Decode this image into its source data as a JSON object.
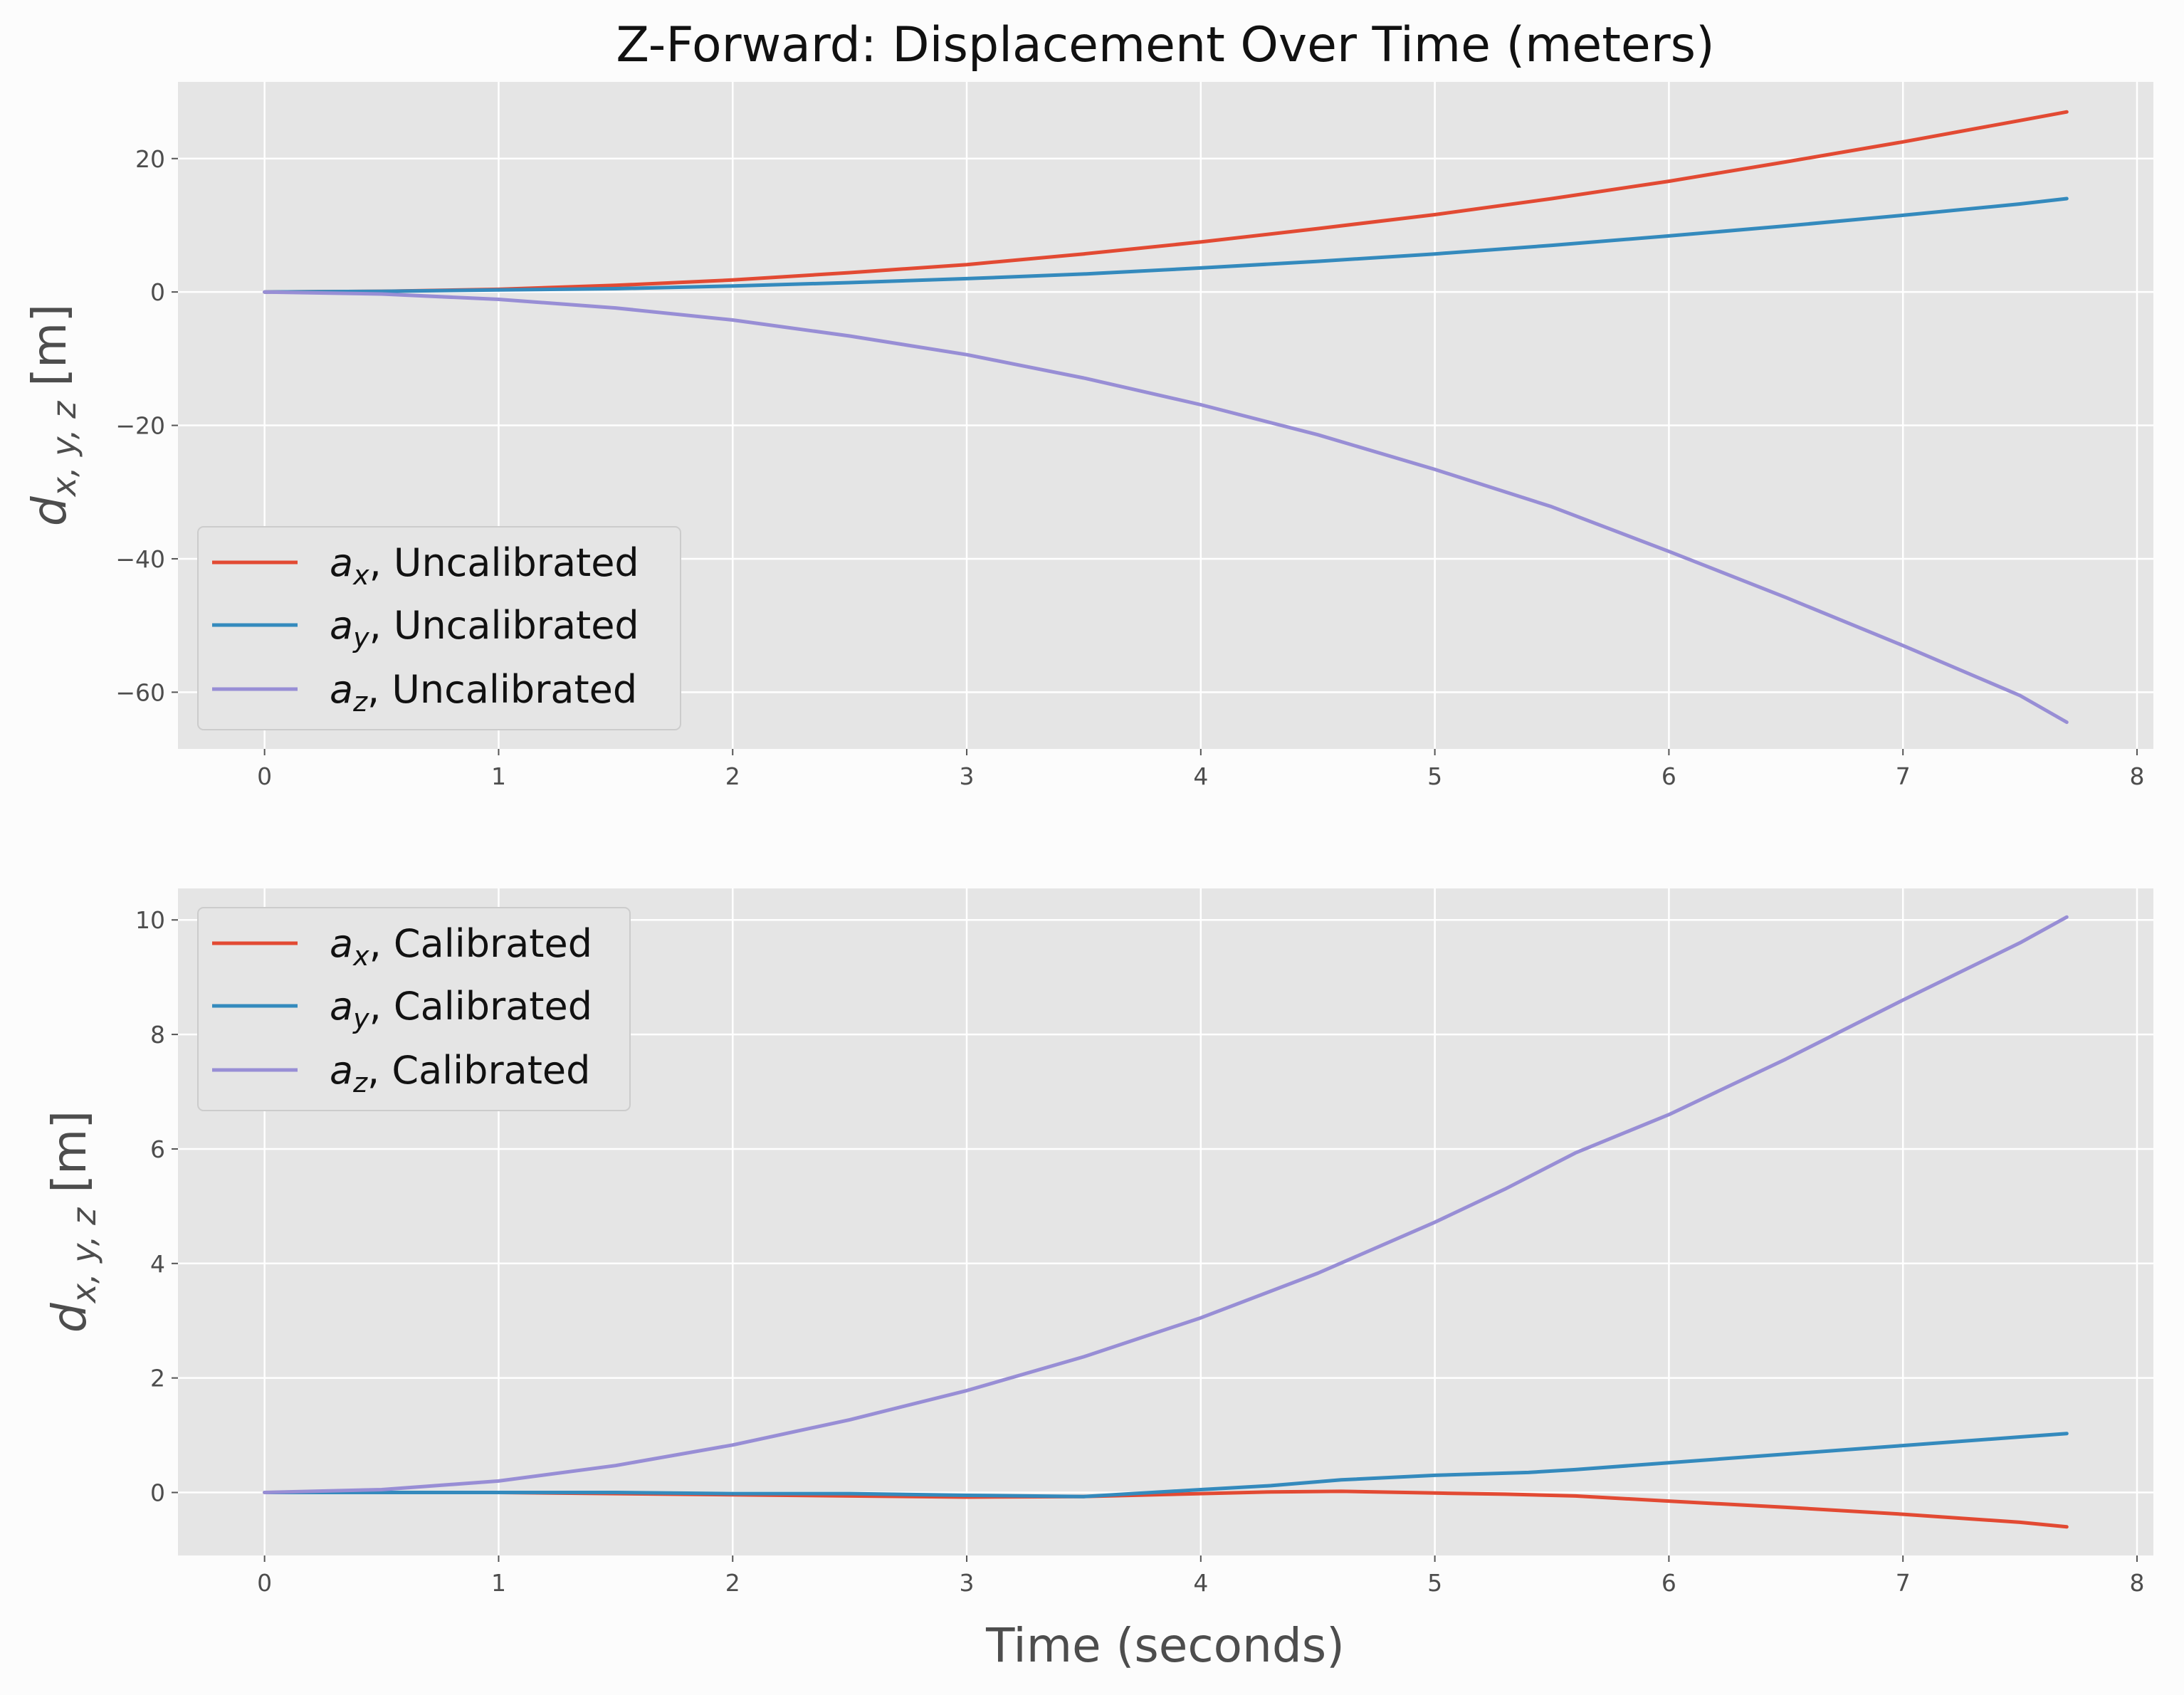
{
  "colors": {
    "ax": "#e24a33",
    "ay": "#348abd",
    "az": "#988ed5",
    "panel_bg": "#e5e5e5",
    "figure_bg": "#fcfcfc"
  },
  "chart_data": [
    {
      "type": "line",
      "title": "Z-Forward: Displacement Over Time (meters)",
      "xlabel": "",
      "ylabel": "d_{x,y,z} [m]",
      "ylabel_parts": {
        "base": "d",
        "sub": "x, y, z",
        "unit": " [m]"
      },
      "xlim": [
        -0.37,
        8.07
      ],
      "ylim": [
        -68.5,
        31.5
      ],
      "xticks": [
        0,
        1,
        2,
        3,
        4,
        5,
        6,
        7,
        8
      ],
      "yticks": [
        20,
        0,
        -20,
        -40,
        -60
      ],
      "ytick_labels": [
        "20",
        "0",
        "−20",
        "−40",
        "−60"
      ],
      "grid": true,
      "legend_position": "lower-left",
      "series": [
        {
          "name": "a_x, Uncalibrated",
          "legend": {
            "base": "a",
            "sub": "x",
            "rest": ", Uncalibrated"
          },
          "color_key": "ax",
          "x": [
            0,
            0.5,
            1,
            1.5,
            2,
            2.5,
            3,
            3.5,
            4,
            4.5,
            5,
            5.5,
            6,
            6.5,
            7,
            7.5,
            7.7
          ],
          "y": [
            0,
            0.1,
            0.4,
            1.0,
            1.8,
            2.9,
            4.1,
            5.7,
            7.5,
            9.5,
            11.6,
            14.0,
            16.6,
            19.5,
            22.5,
            25.7,
            27.0
          ]
        },
        {
          "name": "a_y, Uncalibrated",
          "legend": {
            "base": "a",
            "sub": "y",
            "rest": ", Uncalibrated"
          },
          "color_key": "ay",
          "x": [
            0,
            0.5,
            1,
            1.5,
            2,
            2.5,
            3,
            3.5,
            4,
            4.5,
            5,
            5.5,
            6,
            6.5,
            7,
            7.5,
            7.7
          ],
          "y": [
            0,
            0.1,
            0.3,
            0.5,
            0.9,
            1.4,
            2.0,
            2.7,
            3.6,
            4.6,
            5.7,
            7.0,
            8.4,
            9.9,
            11.5,
            13.2,
            14.0
          ]
        },
        {
          "name": "a_z, Uncalibrated",
          "legend": {
            "base": "a",
            "sub": "z",
            "rest": ", Uncalibrated"
          },
          "color_key": "az",
          "x": [
            0,
            0.5,
            1,
            1.5,
            2,
            2.5,
            3,
            3.5,
            4,
            4.5,
            5,
            5.5,
            6,
            6.5,
            7,
            7.5,
            7.7
          ],
          "y": [
            0,
            -0.3,
            -1.1,
            -2.4,
            -4.2,
            -6.6,
            -9.4,
            -12.9,
            -16.9,
            -21.4,
            -26.6,
            -32.2,
            -38.9,
            -45.8,
            -53.0,
            -60.5,
            -64.5
          ]
        }
      ]
    },
    {
      "type": "line",
      "title": "",
      "xlabel": "Time (seconds)",
      "ylabel": "d_{x,y,z} [m]",
      "ylabel_parts": {
        "base": "d",
        "sub": "x, y, z",
        "unit": " [m]"
      },
      "xlim": [
        -0.37,
        8.07
      ],
      "ylim": [
        -1.1,
        10.55
      ],
      "xticks": [
        0,
        1,
        2,
        3,
        4,
        5,
        6,
        7,
        8
      ],
      "yticks": [
        0,
        2,
        4,
        6,
        8,
        10
      ],
      "ytick_labels": [
        "0",
        "2",
        "4",
        "6",
        "8",
        "10"
      ],
      "grid": true,
      "legend_position": "upper-left",
      "series": [
        {
          "name": "a_x, Calibrated",
          "legend": {
            "base": "a",
            "sub": "x",
            "rest": ", Calibrated"
          },
          "color_key": "ax",
          "x": [
            0,
            0.5,
            1,
            1.5,
            2,
            2.5,
            3,
            3.5,
            4,
            4.3,
            4.6,
            5,
            5.3,
            5.6,
            6,
            6.5,
            7,
            7.5,
            7.7
          ],
          "y": [
            0,
            0,
            0,
            -0.02,
            -0.04,
            -0.06,
            -0.08,
            -0.07,
            -0.02,
            0.01,
            0.02,
            -0.01,
            -0.03,
            -0.06,
            -0.15,
            -0.26,
            -0.38,
            -0.52,
            -0.6
          ]
        },
        {
          "name": "a_y, Calibrated",
          "legend": {
            "base": "a",
            "sub": "y",
            "rest": ", Calibrated"
          },
          "color_key": "ay",
          "x": [
            0,
            0.5,
            1,
            1.5,
            2,
            2.5,
            3,
            3.5,
            4,
            4.3,
            4.6,
            5,
            5.4,
            5.6,
            6,
            6.5,
            7,
            7.5,
            7.7
          ],
          "y": [
            0,
            0,
            0,
            0,
            -0.02,
            -0.02,
            -0.05,
            -0.07,
            0.05,
            0.12,
            0.22,
            0.3,
            0.35,
            0.4,
            0.52,
            0.67,
            0.82,
            0.97,
            1.03
          ]
        },
        {
          "name": "a_z, Calibrated",
          "legend": {
            "base": "a",
            "sub": "z",
            "rest": ", Calibrated"
          },
          "color_key": "az",
          "x": [
            0,
            0.5,
            1,
            1.5,
            2,
            2.5,
            3,
            3.5,
            4,
            4.5,
            5,
            5.3,
            5.6,
            6,
            6.5,
            7,
            7.5,
            7.7
          ],
          "y": [
            0,
            0.05,
            0.2,
            0.47,
            0.83,
            1.27,
            1.78,
            2.37,
            3.05,
            3.83,
            4.72,
            5.3,
            5.93,
            6.6,
            7.57,
            8.6,
            9.6,
            10.05
          ]
        }
      ]
    }
  ]
}
